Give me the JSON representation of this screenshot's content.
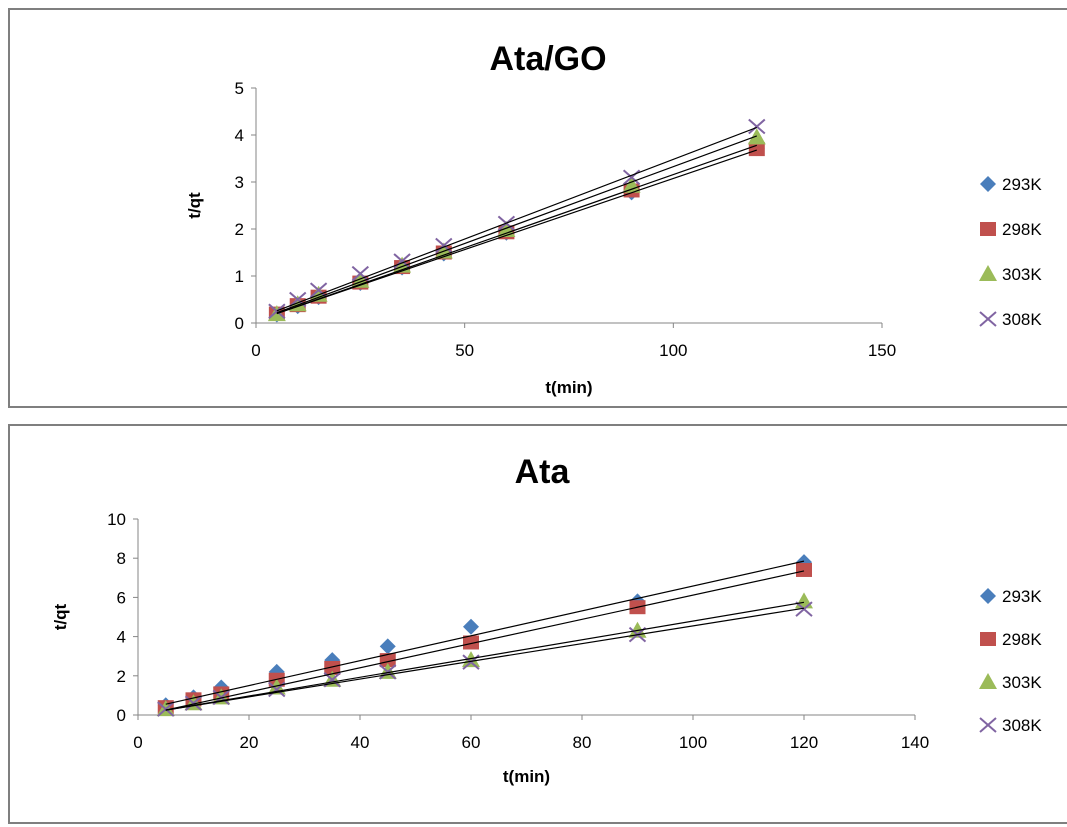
{
  "chart_data": [
    {
      "type": "scatter",
      "title": "Ata/GO",
      "xlabel": "t(min)",
      "ylabel": "t/qt",
      "xlim": [
        0,
        150
      ],
      "ylim": [
        0,
        5
      ],
      "xticks": [
        0,
        50,
        100,
        150
      ],
      "yticks": [
        0,
        1,
        2,
        3,
        4,
        5
      ],
      "grid": false,
      "legend": "right",
      "x": [
        5,
        10,
        15,
        25,
        35,
        45,
        60,
        90,
        120
      ],
      "series": [
        {
          "name": "293K",
          "marker": "diamond",
          "color": "#4a7ebb",
          "values": [
            0.18,
            0.36,
            0.55,
            0.85,
            1.18,
            1.48,
            1.92,
            2.78,
            3.72
          ]
        },
        {
          "name": "298K",
          "marker": "square",
          "color": "#c0504d",
          "values": [
            0.2,
            0.38,
            0.56,
            0.86,
            1.19,
            1.5,
            1.93,
            2.82,
            3.7
          ]
        },
        {
          "name": "303K",
          "marker": "triangle",
          "color": "#9bbb59",
          "values": [
            0.19,
            0.4,
            0.6,
            0.9,
            1.22,
            1.52,
            1.98,
            2.92,
            3.95
          ]
        },
        {
          "name": "308K",
          "marker": "x",
          "color": "#8064a2",
          "values": [
            0.25,
            0.5,
            0.7,
            1.05,
            1.32,
            1.65,
            2.12,
            3.1,
            4.18
          ]
        }
      ],
      "trendlines": [
        {
          "from": [
            5,
            0.2
          ],
          "to": [
            120,
            3.68
          ]
        },
        {
          "from": [
            5,
            0.2
          ],
          "to": [
            120,
            3.78
          ]
        },
        {
          "from": [
            5,
            0.22
          ],
          "to": [
            120,
            3.98
          ]
        },
        {
          "from": [
            5,
            0.26
          ],
          "to": [
            120,
            4.16
          ]
        }
      ]
    },
    {
      "type": "scatter",
      "title": "Ata",
      "xlabel": "t(min)",
      "ylabel": "t/qt",
      "xlim": [
        0,
        140
      ],
      "ylim": [
        0,
        10
      ],
      "xticks": [
        0,
        20,
        40,
        60,
        80,
        100,
        120,
        140
      ],
      "yticks": [
        0,
        2,
        4,
        6,
        8,
        10
      ],
      "grid": false,
      "legend": "right",
      "x": [
        5,
        10,
        15,
        25,
        35,
        45,
        60,
        90,
        120
      ],
      "series": [
        {
          "name": "293K",
          "marker": "diamond",
          "color": "#4a7ebb",
          "values": [
            0.5,
            0.9,
            1.4,
            2.2,
            2.8,
            3.5,
            4.5,
            5.8,
            7.8
          ]
        },
        {
          "name": "298K",
          "marker": "square",
          "color": "#c0504d",
          "values": [
            0.4,
            0.8,
            1.1,
            1.8,
            2.4,
            2.8,
            3.7,
            5.5,
            7.4
          ]
        },
        {
          "name": "303K",
          "marker": "triangle",
          "color": "#9bbb59",
          "values": [
            0.3,
            0.6,
            0.9,
            1.4,
            1.8,
            2.2,
            2.8,
            4.3,
            5.8
          ]
        },
        {
          "name": "308K",
          "marker": "x",
          "color": "#8064a2",
          "values": [
            0.3,
            0.6,
            0.9,
            1.3,
            1.8,
            2.2,
            2.7,
            4.1,
            5.4
          ]
        }
      ],
      "trendlines": [
        {
          "from": [
            5,
            0.55
          ],
          "to": [
            120,
            7.85
          ]
        },
        {
          "from": [
            5,
            0.25
          ],
          "to": [
            120,
            7.35
          ]
        },
        {
          "from": [
            5,
            0.25
          ],
          "to": [
            120,
            5.75
          ]
        },
        {
          "from": [
            5,
            0.25
          ],
          "to": [
            120,
            5.45
          ]
        }
      ]
    }
  ]
}
